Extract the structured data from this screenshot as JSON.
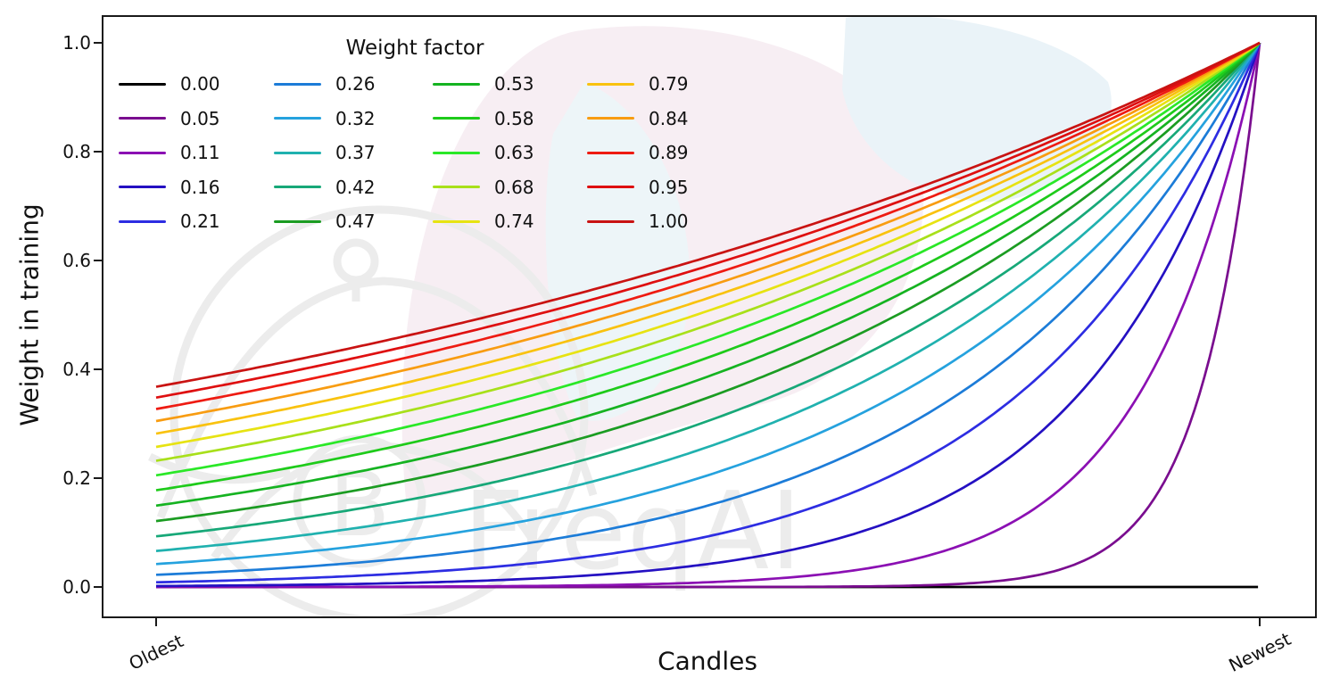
{
  "watermark": {
    "text": "FreqAI",
    "coin_symbol": "B",
    "logo": "freqtrade-logo-outline",
    "logo_color": "#ececec",
    "leaf_colors": {
      "pink": "#f7eef3",
      "blue": "#eaf3f8",
      "blue2": "#edf5f8"
    }
  },
  "chart_data": {
    "type": "line",
    "title": "",
    "xlabel": "Candles",
    "ylabel": "Weight in training",
    "grid": false,
    "legend_title": "Weight factor",
    "legend_position": "upper left, 4 columns, no frame",
    "x_axis": {
      "label": "Candles",
      "tick_labels": [
        "Oldest",
        "Newest"
      ],
      "tick_positions": [
        0,
        1
      ],
      "description": "candle index, normalized 0 = oldest to 1 = newest"
    },
    "y_axis": {
      "label": "Weight in training",
      "ticks": [
        "0.0",
        "0.2",
        "0.4",
        "0.6",
        "0.8",
        "1.0"
      ],
      "ylim": [
        0,
        1
      ]
    },
    "formula": "weight(t) = exp(-(1 - t) / weight_factor); weight_factor = 0 gives constant 0",
    "series": [
      {
        "label": "0.00",
        "factor": 0.0,
        "color": "#000000",
        "start_weight": 0.0,
        "end_weight": 0.0
      },
      {
        "label": "0.05",
        "factor": 0.0526,
        "color": "#7a0d8f",
        "start_weight": 0.0,
        "end_weight": 1.0
      },
      {
        "label": "0.11",
        "factor": 0.1053,
        "color": "#8b10b3",
        "start_weight": 0.0001,
        "end_weight": 1.0
      },
      {
        "label": "0.16",
        "factor": 0.1579,
        "color": "#2410c2",
        "start_weight": 0.0018,
        "end_weight": 1.0
      },
      {
        "label": "0.21",
        "factor": 0.2105,
        "color": "#2d2de2",
        "start_weight": 0.0087,
        "end_weight": 1.0
      },
      {
        "label": "0.26",
        "factor": 0.2632,
        "color": "#1c7cd8",
        "start_weight": 0.0224,
        "end_weight": 1.0
      },
      {
        "label": "0.32",
        "factor": 0.3158,
        "color": "#25a2de",
        "start_weight": 0.0421,
        "end_weight": 1.0
      },
      {
        "label": "0.37",
        "factor": 0.3684,
        "color": "#20b1af",
        "start_weight": 0.0662,
        "end_weight": 1.0
      },
      {
        "label": "0.42",
        "factor": 0.4211,
        "color": "#17a878",
        "start_weight": 0.0931,
        "end_weight": 1.0
      },
      {
        "label": "0.47",
        "factor": 0.4737,
        "color": "#1b9c22",
        "start_weight": 0.121,
        "end_weight": 1.0
      },
      {
        "label": "0.53",
        "factor": 0.5263,
        "color": "#15b321",
        "start_weight": 0.1496,
        "end_weight": 1.0
      },
      {
        "label": "0.58",
        "factor": 0.5789,
        "color": "#1ecb1a",
        "start_weight": 0.1777,
        "end_weight": 1.0
      },
      {
        "label": "0.63",
        "factor": 0.6316,
        "color": "#2ae827",
        "start_weight": 0.2053,
        "end_weight": 1.0
      },
      {
        "label": "0.68",
        "factor": 0.6842,
        "color": "#a8e01a",
        "start_weight": 0.2318,
        "end_weight": 1.0
      },
      {
        "label": "0.74",
        "factor": 0.7368,
        "color": "#e7e312",
        "start_weight": 0.2573,
        "end_weight": 1.0
      },
      {
        "label": "0.79",
        "factor": 0.7895,
        "color": "#f9c20f",
        "start_weight": 0.2818,
        "end_weight": 1.0
      },
      {
        "label": "0.84",
        "factor": 0.8421,
        "color": "#f89c11",
        "start_weight": 0.3049,
        "end_weight": 1.0
      },
      {
        "label": "0.89",
        "factor": 0.8947,
        "color": "#ee1b12",
        "start_weight": 0.3269,
        "end_weight": 1.0
      },
      {
        "label": "0.95",
        "factor": 0.9474,
        "color": "#de0f10",
        "start_weight": 0.3479,
        "end_weight": 1.0
      },
      {
        "label": "1.00",
        "factor": 1.0,
        "color": "#c91312",
        "start_weight": 0.3679,
        "end_weight": 1.0
      }
    ],
    "axis_color": "#1a1a1a"
  }
}
